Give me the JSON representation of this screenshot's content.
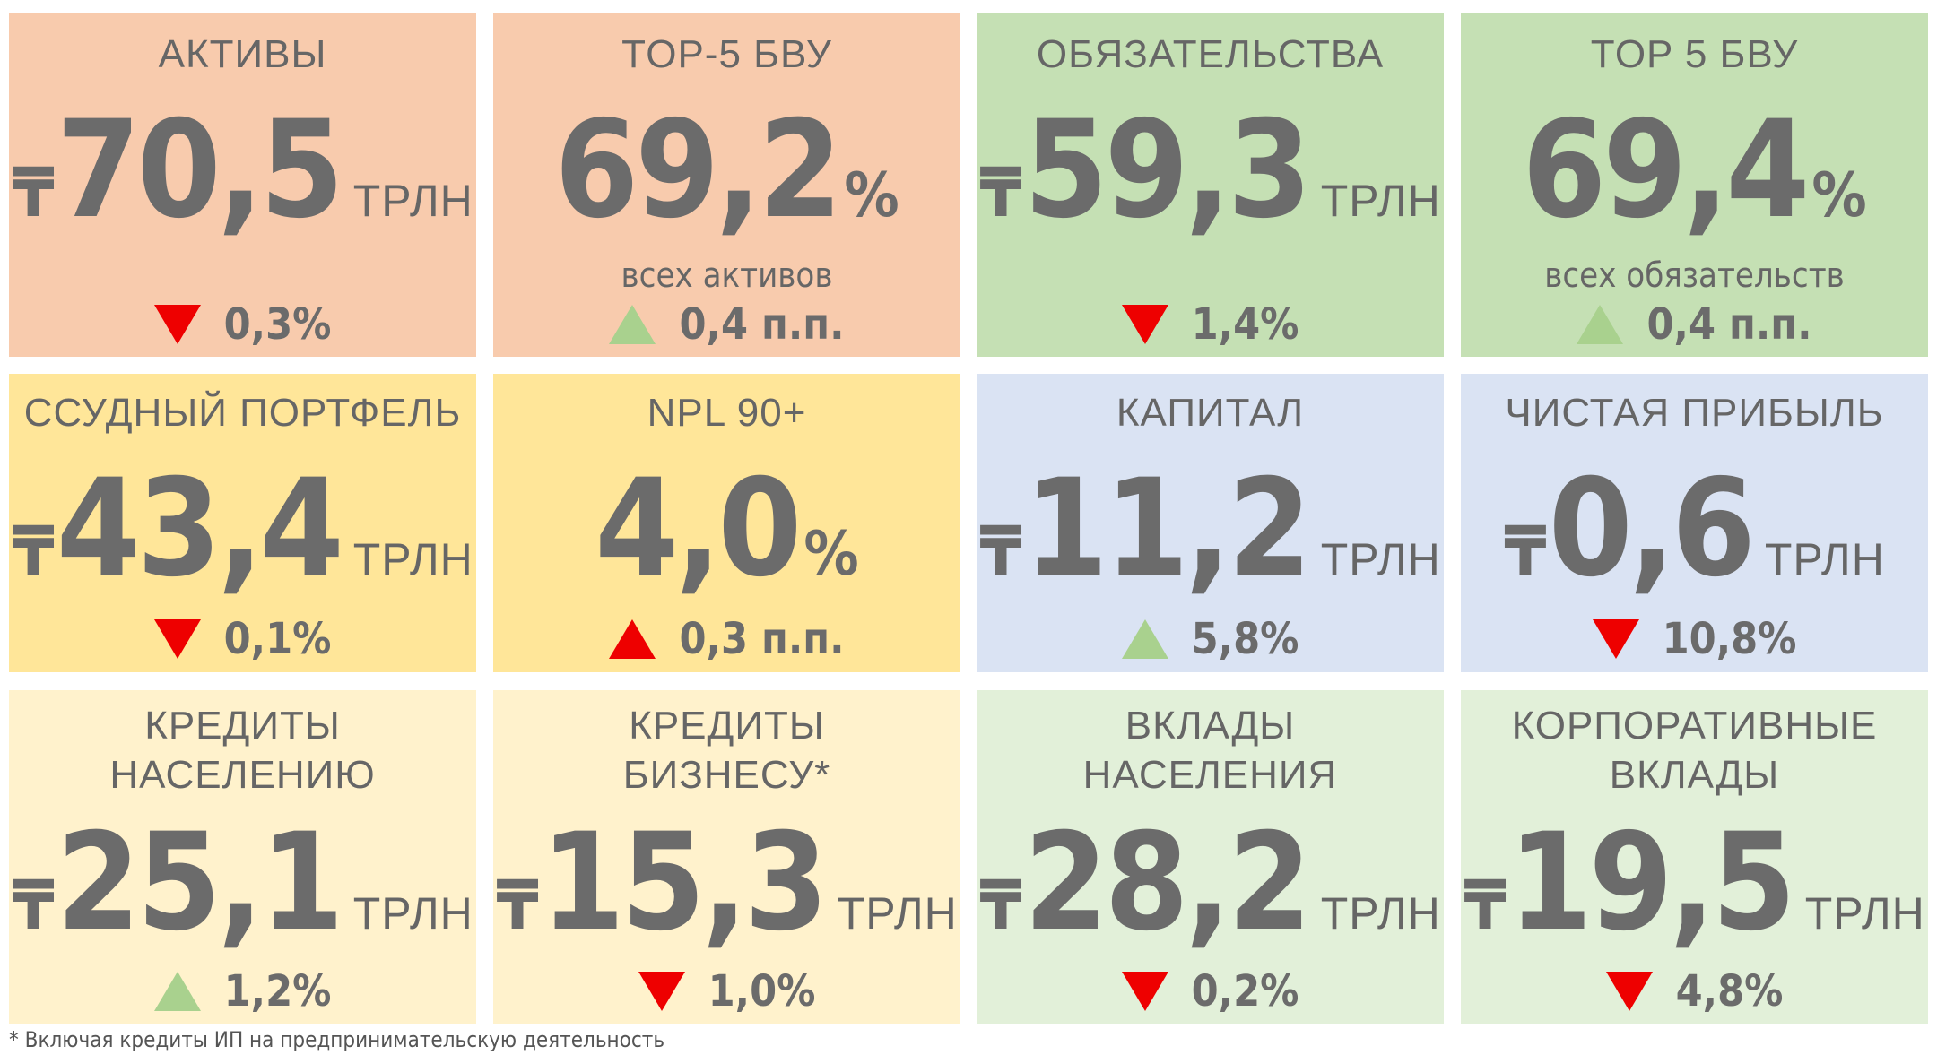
{
  "colors": {
    "salmon": "#f8cbad",
    "green": "#c5e0b4",
    "gold": "#ffe699",
    "blue": "#dae3f3",
    "cream": "#fff2cc",
    "light_green": "#e2f0d9",
    "down_red": "#ee0000",
    "up_green": "#a9d18e",
    "up_red": "#ee0000"
  },
  "tiles": [
    {
      "title": "АКТИВЫ",
      "currency": "₸",
      "value": "70,5",
      "unit": "ТРЛН",
      "change_direction": "down",
      "change_color": "red",
      "change": "0,3%"
    },
    {
      "title": "TOP-5 БВУ",
      "value": "69,2",
      "unit": "%",
      "subtitle": "всех активов",
      "change_direction": "up",
      "change_color": "green",
      "change": "0,4 п.п."
    },
    {
      "title": "ОБЯЗАТЕЛЬСТВА",
      "currency": "₸",
      "value": "59,3",
      "unit": "ТРЛН",
      "change_direction": "down",
      "change_color": "red",
      "change": "1,4%"
    },
    {
      "title": "TOP 5 БВУ",
      "value": "69,4",
      "unit": "%",
      "subtitle": "всех обязательств",
      "change_direction": "up",
      "change_color": "green",
      "change": "0,4 п.п."
    },
    {
      "title": "ССУДНЫЙ ПОРТФЕЛЬ",
      "currency": "₸",
      "value": "43,4",
      "unit": "ТРЛН",
      "change_direction": "down",
      "change_color": "red",
      "change": "0,1%"
    },
    {
      "title": "NPL 90+",
      "value": "4,0",
      "unit": "%",
      "change_direction": "up",
      "change_color": "red",
      "change": "0,3 п.п."
    },
    {
      "title": "КАПИТАЛ",
      "currency": "₸",
      "value": "11,2",
      "unit": "ТРЛН",
      "change_direction": "up",
      "change_color": "green",
      "change": "5,8%"
    },
    {
      "title": "ЧИСТАЯ ПРИБЫЛЬ",
      "currency": "₸",
      "value": "0,6",
      "unit": "ТРЛН",
      "change_direction": "down",
      "change_color": "red",
      "change": "10,8%"
    },
    {
      "title_line1": "КРЕДИТЫ",
      "title_line2": "НАСЕЛЕНИЮ",
      "currency": "₸",
      "value": "25,1",
      "unit": "ТРЛН",
      "change_direction": "up",
      "change_color": "green",
      "change": "1,2%"
    },
    {
      "title_line1": "КРЕДИТЫ",
      "title_line2": "БИЗНЕСУ*",
      "currency": "₸",
      "value": "15,3",
      "unit": "ТРЛН",
      "change_direction": "down",
      "change_color": "red",
      "change": "1,0%"
    },
    {
      "title_line1": "ВКЛАДЫ",
      "title_line2": "НАСЕЛЕНИЯ",
      "currency": "₸",
      "value": "28,2",
      "unit": "ТРЛН",
      "change_direction": "down",
      "change_color": "red",
      "change": "0,2%"
    },
    {
      "title_line1": "КОРПОРАТИВНЫЕ",
      "title_line2": "ВКЛАДЫ",
      "currency": "₸",
      "value": "19,5",
      "unit": "ТРЛН",
      "change_direction": "down",
      "change_color": "red",
      "change": "4,8%"
    }
  ],
  "footnote": "* Включая кредиты ИП на предпринимательскую деятельность"
}
